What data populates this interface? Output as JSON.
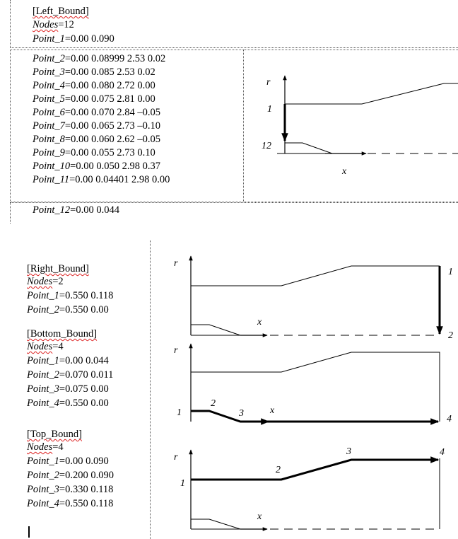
{
  "left_bound": {
    "header": "[Left_Bound]",
    "nodes_key": "Nodes",
    "nodes_val": "=12",
    "points": [
      {
        "k": "Point_1",
        "v": "=0.00 0.090"
      },
      {
        "k": "Point_2",
        "v": "=0.00 0.08999 2.53 0.02"
      },
      {
        "k": "Point_3",
        "v": "=0.00 0.085 2.53 0.02"
      },
      {
        "k": "Point_4",
        "v": "=0.00 0.080 2.72 0.00"
      },
      {
        "k": "Point_5",
        "v": "=0.00 0.075 2.81 0.00"
      },
      {
        "k": "Point_6",
        "v": "=0.00 0.070 2.84 –0.05"
      },
      {
        "k": "Point_7",
        "v": "=0.00 0.065 2.73 –0.10"
      },
      {
        "k": "Point_8",
        "v": "=0.00 0.060 2.62 –0.05"
      },
      {
        "k": "Point_9",
        "v": "=0.00 0.055 2.73 0.10"
      },
      {
        "k": "Point_10",
        "v": "=0.00 0.050 2.98 0.37"
      },
      {
        "k": "Point_11",
        "v": "=0.00 0.04401 2.98 0.00"
      },
      {
        "k": "Point_12",
        "v": "=0.00 0.044"
      }
    ]
  },
  "right_bound": {
    "header": "[Right_Bound]",
    "nodes_key": "Nodes",
    "nodes_val": "=2",
    "points": [
      {
        "k": "Point_1",
        "v": "=0.550 0.118"
      },
      {
        "k": "Point_2",
        "v": "=0.550 0.00"
      }
    ]
  },
  "bottom_bound": {
    "header": "[Bottom_Bound]",
    "nodes_key": "Nodes",
    "nodes_val": "=4",
    "points": [
      {
        "k": "Point_1",
        "v": "=0.00 0.044"
      },
      {
        "k": "Point_2",
        "v": "=0.070 0.011"
      },
      {
        "k": "Point_3",
        "v": "=0.075 0.00"
      },
      {
        "k": "Point_4",
        "v": "=0.550 0.00"
      }
    ]
  },
  "top_bound": {
    "header": "[Top_Bound]",
    "nodes_key": "Nodes",
    "nodes_val": "=4",
    "points": [
      {
        "k": "Point_1",
        "v": "=0.00 0.090"
      },
      {
        "k": "Point_2",
        "v": "=0.200 0.090"
      },
      {
        "k": "Point_3",
        "v": "=0.330 0.118"
      },
      {
        "k": "Point_4",
        "v": "=0.550 0.118"
      }
    ]
  },
  "diagrams": {
    "left": {
      "r": "r",
      "x": "x",
      "n1": "1",
      "n12": "12"
    },
    "right": {
      "r": "r",
      "x": "x",
      "n1": "1",
      "n2": "2"
    },
    "bottom": {
      "r": "r",
      "x": "x",
      "n1": "1",
      "n2": "2",
      "n3": "3",
      "n4": "4"
    },
    "top": {
      "r": "r",
      "x": "x",
      "n1": "1",
      "n2": "2",
      "n3": "3",
      "n4": "4"
    }
  }
}
